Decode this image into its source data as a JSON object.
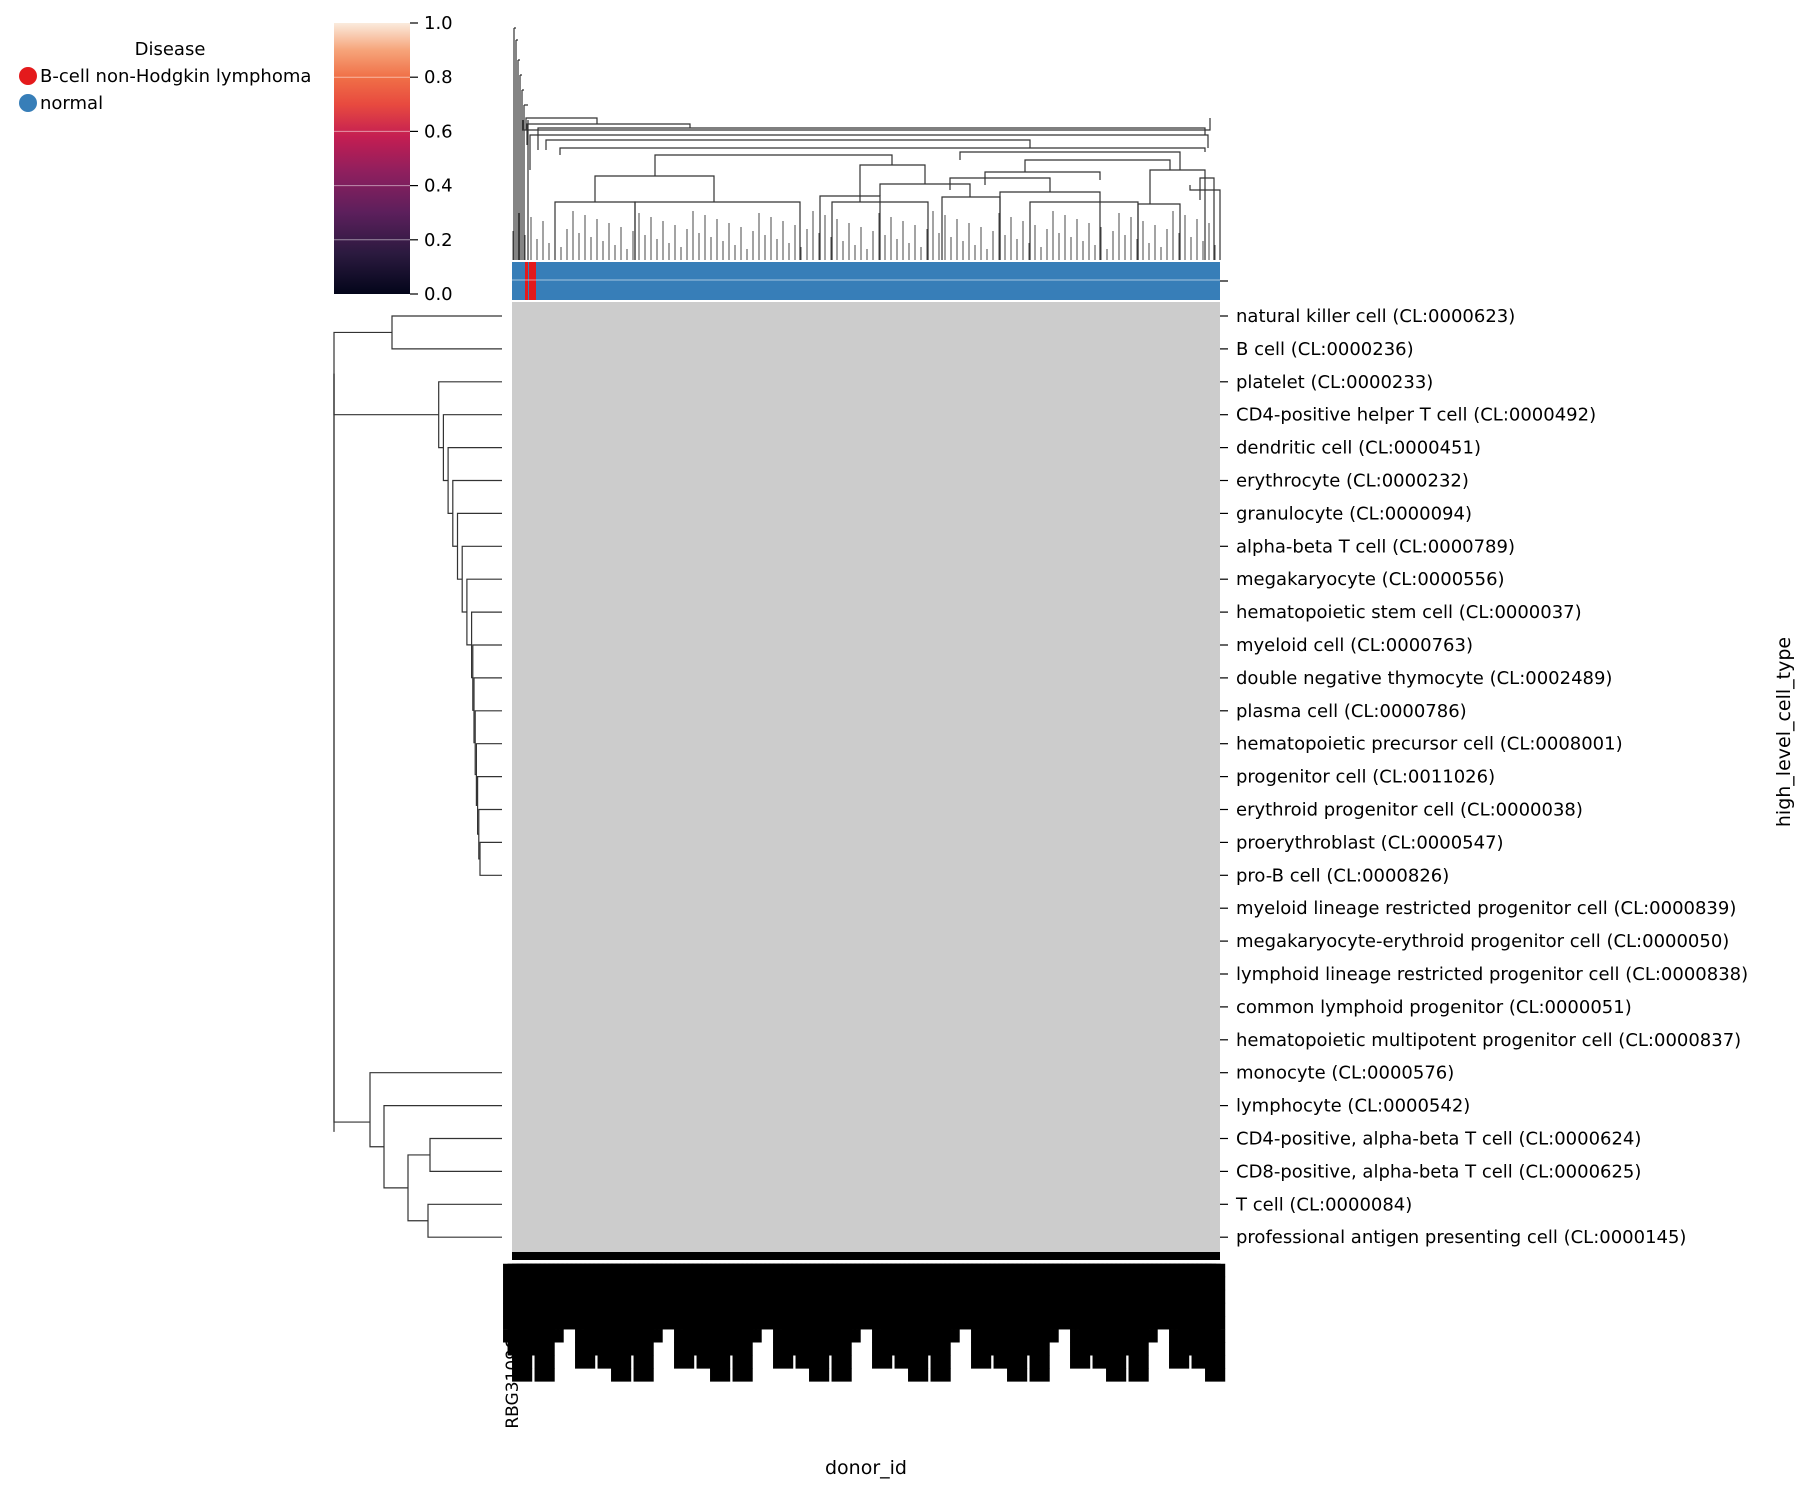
{
  "chart_data": {
    "type": "heatmap",
    "xlabel": "donor_id",
    "ylabel": "high_level_cell_type",
    "row_labels": [
      "natural killer cell (CL:0000623)",
      "B cell (CL:0000236)",
      "platelet (CL:0000233)",
      "CD4-positive helper T cell (CL:0000492)",
      "dendritic cell (CL:0000451)",
      "erythrocyte (CL:0000232)",
      "granulocyte (CL:0000094)",
      "alpha-beta T cell (CL:0000789)",
      "megakaryocyte (CL:0000556)",
      "hematopoietic stem cell (CL:0000037)",
      "myeloid cell (CL:0000763)",
      "double negative thymocyte (CL:0002489)",
      "plasma cell (CL:0000786)",
      "hematopoietic precursor cell (CL:0008001)",
      "progenitor cell (CL:0011026)",
      "erythroid progenitor cell (CL:0000038)",
      "proerythroblast (CL:0000547)",
      "pro-B cell (CL:0000826)",
      "myeloid lineage restricted progenitor cell (CL:0000839)",
      "megakaryocyte-erythroid progenitor cell (CL:0000050)",
      "lymphoid lineage restricted progenitor cell (CL:0000838)",
      "common lymphoid progenitor (CL:0000051)",
      "hematopoietic multipotent progenitor cell (CL:0000837)",
      "monocyte (CL:0000576)",
      "lymphocyte (CL:0000542)",
      "CD4-positive, alpha-beta T cell (CL:0000624)",
      "CD8-positive, alpha-beta T cell (CL:0000625)",
      "T cell (CL:0000084)",
      "professional antigen presenting cell (CL:0000145)"
    ],
    "x_first_label": "RBG31096_Xu2023",
    "cell_value_display": "near-uniform (masked, grey)",
    "colorbar": {
      "range": [
        0.0,
        1.0
      ],
      "ticks": [
        "0.0",
        "0.2",
        "0.4",
        "0.6",
        "0.8",
        "1.0"
      ],
      "colormap": "rocket"
    },
    "legend": {
      "title": "Disease",
      "placement": "top-left",
      "entries": [
        {
          "name": "B-cell non-Hodgkin lymphoma",
          "color": "#e41a1c"
        },
        {
          "name": "normal",
          "color": "#377eb8"
        }
      ]
    },
    "column_annotation": {
      "colors": {
        "normal": "#377eb8",
        "lymphoma": "#e41a1c"
      }
    },
    "cell_color": "#cccccc"
  }
}
